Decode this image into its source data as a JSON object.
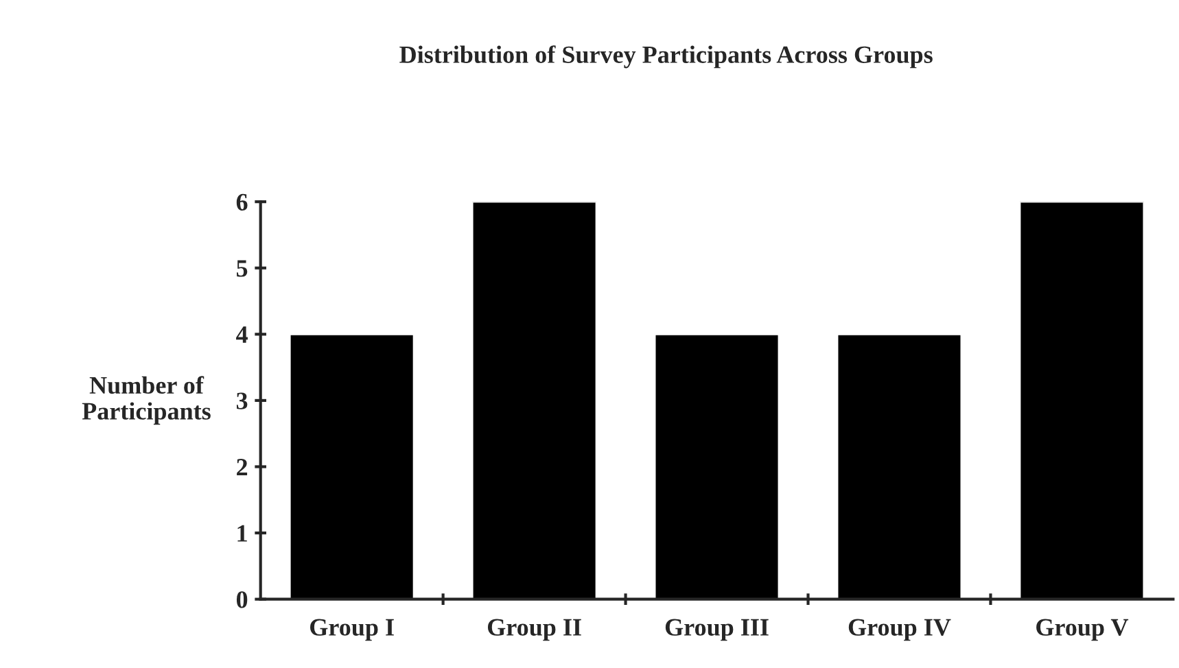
{
  "chart_data": {
    "type": "bar",
    "title": "Distribution of Survey Participants Across Groups",
    "ylabel": "Number of\nParticipants",
    "categories": [
      "Group I",
      "Group II",
      "Group III",
      "Group IV",
      "Group V"
    ],
    "values": [
      4,
      6,
      4,
      4,
      6
    ],
    "color": "#000000",
    "ylim": [
      0,
      6
    ],
    "yticks": [
      0,
      1,
      2,
      3,
      4,
      5,
      6
    ],
    "grid": false,
    "legend": false
  }
}
